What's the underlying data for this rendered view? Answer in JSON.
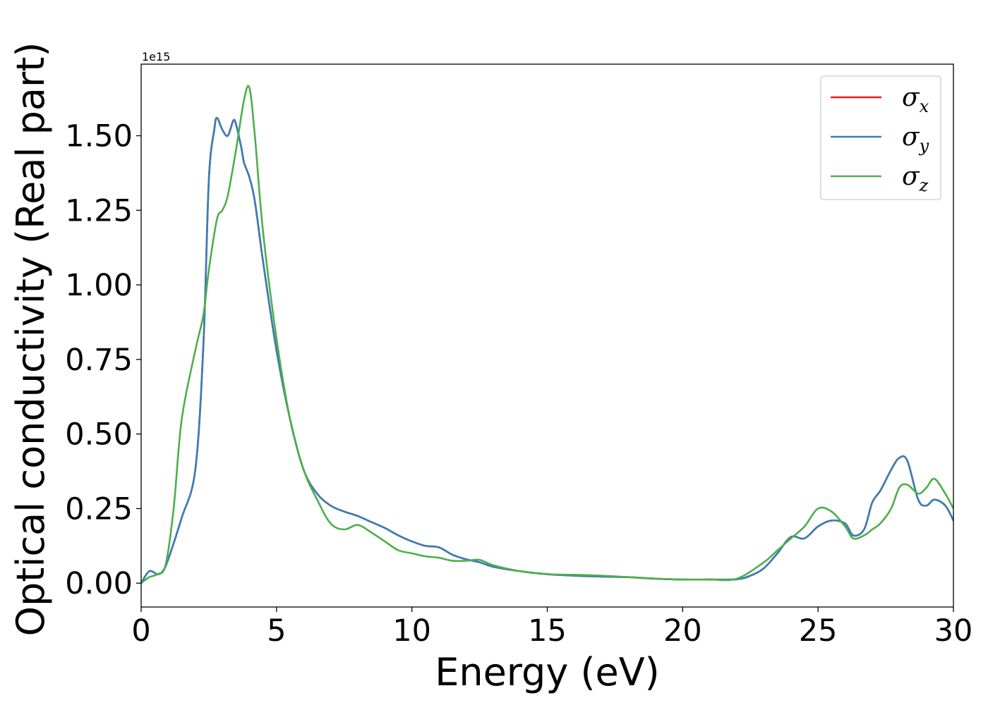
{
  "chart_data": {
    "type": "line",
    "xlabel": "Energy (eV)",
    "ylabel": "Optical conductivity (Real part)",
    "xlim": [
      0,
      30
    ],
    "ylim": [
      -0.08,
      1.74
    ],
    "y_offset_text": "1e15",
    "xticks": [
      0,
      5,
      10,
      15,
      20,
      25,
      30
    ],
    "xtick_labels": [
      "0",
      "5",
      "10",
      "15",
      "20",
      "25",
      "30"
    ],
    "yticks": [
      0.0,
      0.25,
      0.5,
      0.75,
      1.0,
      1.25,
      1.5
    ],
    "ytick_labels": [
      "0.00",
      "0.25",
      "0.50",
      "0.75",
      "1.00",
      "1.25",
      "1.50"
    ],
    "grid": false,
    "legend": {
      "position": "top-right",
      "entries": [
        {
          "symbol": "σ",
          "sub": "x",
          "color": "#e41a1c"
        },
        {
          "symbol": "σ",
          "sub": "y",
          "color": "#377eb8"
        },
        {
          "symbol": "σ",
          "sub": "z",
          "color": "#4daf4a"
        }
      ]
    },
    "series": [
      {
        "color": "#e41a1c",
        "x": [
          0,
          0.3,
          0.6,
          0.8,
          1,
          1.5,
          2,
          2.3,
          2.5,
          2.7,
          2.8,
          3,
          3.2,
          3.4,
          3.5,
          3.7,
          3.8,
          4,
          4.2,
          4.5,
          5,
          5.5,
          6,
          6.5,
          7,
          7.5,
          8,
          8.5,
          9,
          9.5,
          10,
          10.5,
          11,
          11.5,
          12,
          12.5,
          13,
          14,
          15,
          16,
          17,
          18,
          19,
          20,
          21,
          22,
          22.5,
          23,
          23.5,
          24,
          24.5,
          25,
          25.5,
          26,
          26.3,
          26.7,
          27,
          27.3,
          27.7,
          28,
          28.3,
          28.7,
          29,
          29.3,
          29.7,
          30
        ],
        "y": [
          0,
          0.04,
          0.03,
          0.04,
          0.08,
          0.22,
          0.38,
          0.8,
          1.35,
          1.52,
          1.56,
          1.52,
          1.5,
          1.55,
          1.54,
          1.46,
          1.41,
          1.36,
          1.28,
          1.08,
          0.78,
          0.55,
          0.38,
          0.3,
          0.26,
          0.24,
          0.225,
          0.205,
          0.185,
          0.16,
          0.14,
          0.125,
          0.12,
          0.095,
          0.08,
          0.07,
          0.055,
          0.04,
          0.03,
          0.025,
          0.022,
          0.02,
          0.015,
          0.012,
          0.012,
          0.013,
          0.025,
          0.05,
          0.1,
          0.155,
          0.15,
          0.19,
          0.21,
          0.2,
          0.16,
          0.18,
          0.27,
          0.31,
          0.38,
          0.42,
          0.41,
          0.28,
          0.26,
          0.28,
          0.26,
          0.21
        ]
      },
      {
        "color": "#377eb8",
        "x": [
          0,
          0.3,
          0.6,
          0.8,
          1,
          1.5,
          2,
          2.3,
          2.5,
          2.7,
          2.8,
          3,
          3.2,
          3.4,
          3.5,
          3.7,
          3.8,
          4,
          4.2,
          4.5,
          5,
          5.5,
          6,
          6.5,
          7,
          7.5,
          8,
          8.5,
          9,
          9.5,
          10,
          10.5,
          11,
          11.5,
          12,
          12.5,
          13,
          14,
          15,
          16,
          17,
          18,
          19,
          20,
          21,
          22,
          22.5,
          23,
          23.5,
          24,
          24.5,
          25,
          25.5,
          26,
          26.3,
          26.7,
          27,
          27.3,
          27.7,
          28,
          28.3,
          28.7,
          29,
          29.3,
          29.7,
          30
        ],
        "y": [
          0,
          0.04,
          0.03,
          0.04,
          0.08,
          0.22,
          0.38,
          0.8,
          1.35,
          1.52,
          1.56,
          1.52,
          1.5,
          1.55,
          1.54,
          1.46,
          1.41,
          1.36,
          1.28,
          1.08,
          0.78,
          0.55,
          0.38,
          0.3,
          0.26,
          0.24,
          0.225,
          0.205,
          0.185,
          0.16,
          0.14,
          0.125,
          0.12,
          0.095,
          0.08,
          0.07,
          0.055,
          0.04,
          0.03,
          0.025,
          0.022,
          0.02,
          0.015,
          0.012,
          0.012,
          0.013,
          0.025,
          0.05,
          0.1,
          0.155,
          0.15,
          0.19,
          0.21,
          0.2,
          0.16,
          0.18,
          0.27,
          0.31,
          0.38,
          0.42,
          0.41,
          0.28,
          0.26,
          0.28,
          0.26,
          0.21
        ]
      },
      {
        "color": "#4daf4a",
        "x": [
          0,
          0.3,
          0.6,
          0.9,
          1.2,
          1.5,
          2,
          2.3,
          2.5,
          2.8,
          3,
          3.2,
          3.5,
          3.8,
          4,
          4.2,
          4.5,
          5,
          5.5,
          6,
          6.5,
          7,
          7.5,
          8,
          8.5,
          9,
          9.5,
          10,
          10.5,
          11,
          11.5,
          12,
          12.5,
          13,
          14,
          15,
          16,
          17,
          18,
          19,
          20,
          21,
          22,
          23,
          23.5,
          24,
          24.5,
          25,
          25.5,
          26,
          26.3,
          26.7,
          27,
          27.3,
          27.7,
          28,
          28.3,
          28.7,
          29,
          29.3,
          29.7,
          30
        ],
        "y": [
          0,
          0.02,
          0.03,
          0.06,
          0.25,
          0.55,
          0.78,
          0.9,
          1.05,
          1.22,
          1.25,
          1.3,
          1.45,
          1.62,
          1.66,
          1.5,
          1.18,
          0.82,
          0.55,
          0.38,
          0.28,
          0.2,
          0.18,
          0.195,
          0.17,
          0.14,
          0.11,
          0.1,
          0.09,
          0.085,
          0.075,
          0.075,
          0.078,
          0.06,
          0.04,
          0.03,
          0.028,
          0.025,
          0.02,
          0.015,
          0.012,
          0.012,
          0.015,
          0.07,
          0.11,
          0.15,
          0.19,
          0.25,
          0.24,
          0.19,
          0.15,
          0.16,
          0.18,
          0.2,
          0.25,
          0.32,
          0.33,
          0.3,
          0.32,
          0.35,
          0.3,
          0.25
        ]
      }
    ]
  }
}
